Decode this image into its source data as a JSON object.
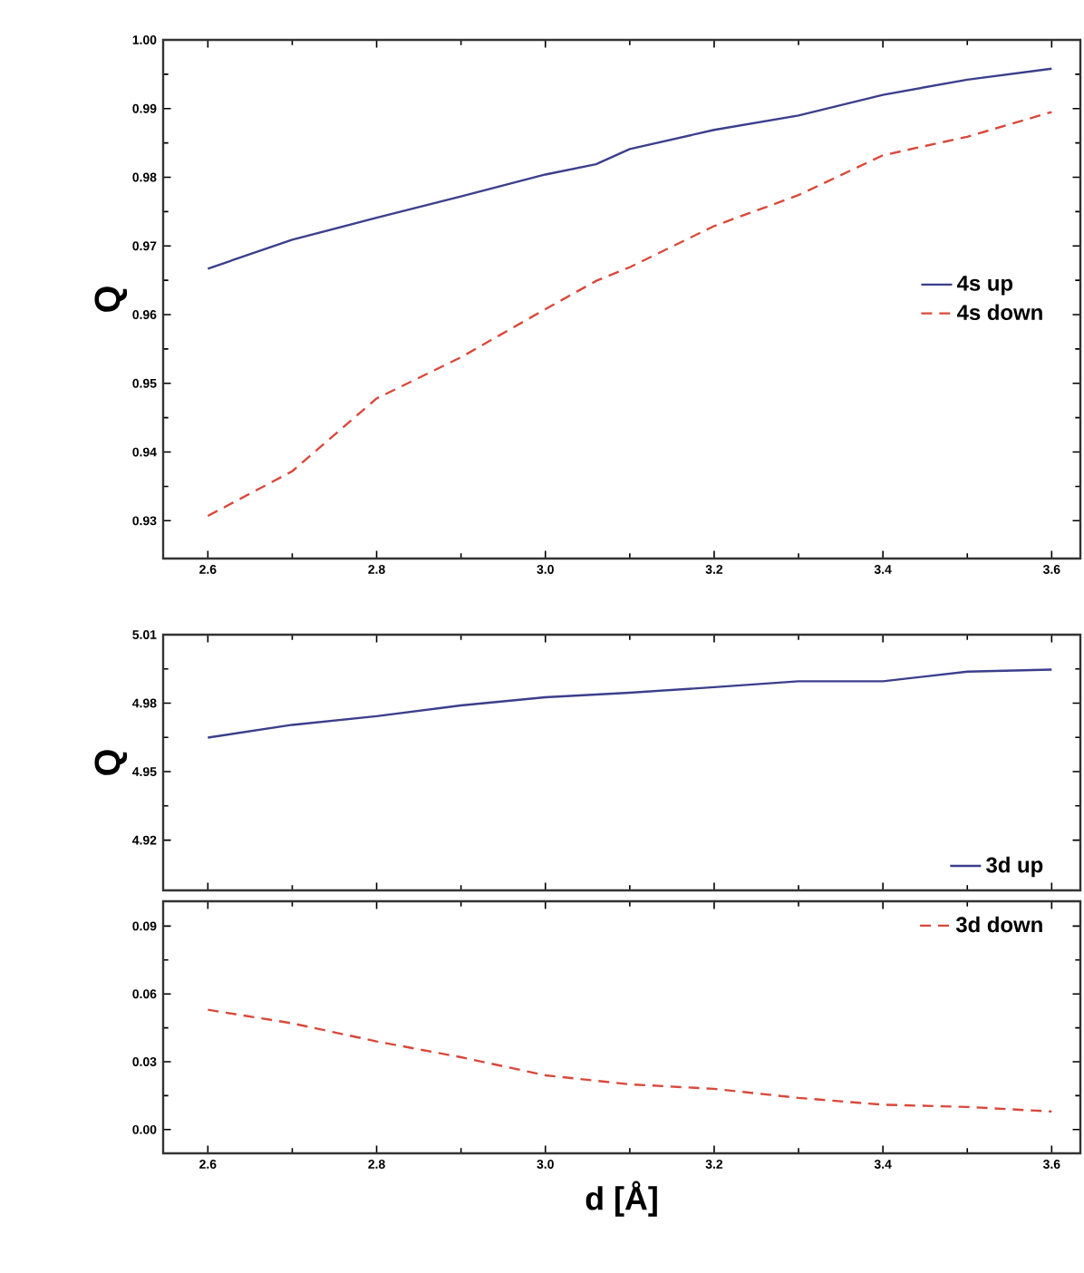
{
  "chart_data": [
    {
      "type": "line",
      "ylabel": "Q",
      "x": [
        2.6,
        2.7,
        2.8,
        2.9,
        3.0,
        3.06,
        3.1,
        3.2,
        3.3,
        3.4,
        3.5,
        3.6
      ],
      "series": [
        {
          "name": "4s up",
          "color": "#3b3f8c",
          "line_style": "solid",
          "values": [
            0.9667,
            0.9709,
            0.9741,
            0.9772,
            0.9804,
            0.9819,
            0.9841,
            0.9869,
            0.989,
            0.992,
            0.9942,
            0.9958
          ]
        },
        {
          "name": "4s down",
          "color": "#d9483b",
          "line_style": "dashed",
          "values": [
            0.9307,
            0.9372,
            0.9478,
            0.9538,
            0.9608,
            0.9649,
            0.9669,
            0.9729,
            0.9774,
            0.9832,
            0.9859,
            0.9895
          ]
        }
      ],
      "xlim": [
        2.547,
        3.634
      ],
      "ylim": [
        0.9245,
        1.0
      ],
      "xticks": [
        2.6,
        2.8,
        {
          "value": 3.0,
          "label": "3.0"
        },
        3.2,
        3.4,
        3.6
      ],
      "yticks": [
        0.93,
        0.94,
        0.95,
        0.96,
        0.97,
        0.98,
        0.99,
        {
          "value": 1.0,
          "label": "1.00"
        }
      ],
      "legend": "right"
    },
    {
      "type": "line",
      "ylabel": "Q",
      "x": [
        2.6,
        2.7,
        2.8,
        2.9,
        3.0,
        3.1,
        3.2,
        3.3,
        3.4,
        3.5,
        3.6
      ],
      "series": [
        {
          "name": "3d up",
          "color": "#3b3f8c",
          "line_style": "solid",
          "values": [
            4.9649,
            4.9705,
            4.9743,
            4.979,
            4.9826,
            4.9846,
            4.987,
            4.9896,
            4.9896,
            4.9938,
            4.9947
          ]
        }
      ],
      "xlim": [
        2.547,
        3.634
      ],
      "ylim": [
        4.898,
        5.01
      ],
      "xticks": [
        {
          "value": 2.6,
          "label": null
        },
        {
          "value": 2.8,
          "label": null
        },
        {
          "value": 3.0,
          "label": null
        },
        {
          "value": 3.2,
          "label": null
        },
        {
          "value": 3.4,
          "label": null
        },
        {
          "value": 3.6,
          "label": null
        }
      ],
      "yticks": [
        4.92,
        4.95,
        4.98,
        5.01
      ],
      "tick_labels": "y",
      "legend": "bottom right"
    },
    {
      "type": "line",
      "xlabel": "d  [Å]",
      "x": [
        2.6,
        2.7,
        2.8,
        2.9,
        3.0,
        3.1,
        3.2,
        3.3,
        3.4,
        3.5,
        3.6
      ],
      "series": [
        {
          "name": "3d down",
          "color": "#d9483b",
          "line_style": "dashed",
          "values": [
            0.053,
            0.047,
            0.039,
            0.032,
            0.024,
            0.02,
            0.018,
            0.014,
            0.011,
            0.01,
            0.008
          ]
        }
      ],
      "xlim": [
        2.547,
        3.634
      ],
      "ylim": [
        -0.0105,
        0.101
      ],
      "xticks": [
        2.6,
        2.8,
        {
          "value": 3.0,
          "label": "3.0"
        },
        3.2,
        3.4,
        3.6
      ],
      "yticks": [
        {
          "value": 0,
          "label": "0.00"
        },
        0.03,
        0.06,
        0.09
      ],
      "legend": "top right"
    }
  ]
}
